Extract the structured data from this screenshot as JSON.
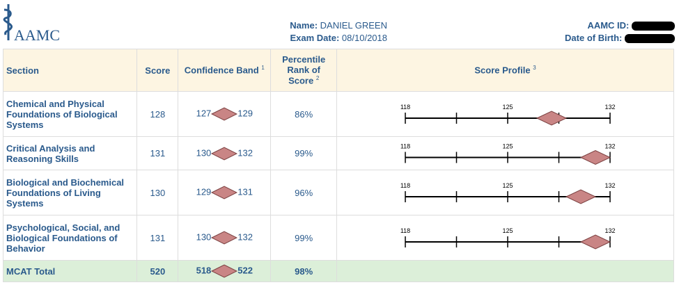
{
  "header": {
    "logo": "AAMC",
    "name_label": "Name:",
    "name": "DANIEL GREEN",
    "exam_date_label": "Exam Date:",
    "exam_date": "08/10/2018",
    "id_label": "AAMC ID:",
    "dob_label": "Date of Birth:"
  },
  "table": {
    "columns": [
      {
        "label": "Section"
      },
      {
        "label": "Score"
      },
      {
        "label": "Confidence Band",
        "note": "1"
      },
      {
        "label": "Percentile Rank of Score",
        "note": "2"
      },
      {
        "label": "Score Profile",
        "note": "3"
      }
    ],
    "rows": [
      {
        "section": "Chemical and Physical Foundations of Biological Systems",
        "score": 128,
        "band_low": 127,
        "band_high": 129,
        "percentile": "86%"
      },
      {
        "section": "Critical Analysis and Reasoning Skills",
        "score": 131,
        "band_low": 130,
        "band_high": 132,
        "percentile": "99%"
      },
      {
        "section": "Biological and Biochemical Foundations of Living Systems",
        "score": 130,
        "band_low": 129,
        "band_high": 131,
        "percentile": "96%"
      },
      {
        "section": "Psychological, Social, and Biological Foundations of Behavior",
        "score": 131,
        "band_low": 130,
        "band_high": 132,
        "percentile": "99%"
      }
    ],
    "total": {
      "section": "MCAT Total",
      "score": 520,
      "band_low": 518,
      "band_high": 522,
      "percentile": "98%"
    },
    "scale": {
      "ticks": [
        118,
        121.5,
        125,
        128.5,
        132
      ],
      "labels": [
        118,
        125,
        132
      ]
    }
  }
}
